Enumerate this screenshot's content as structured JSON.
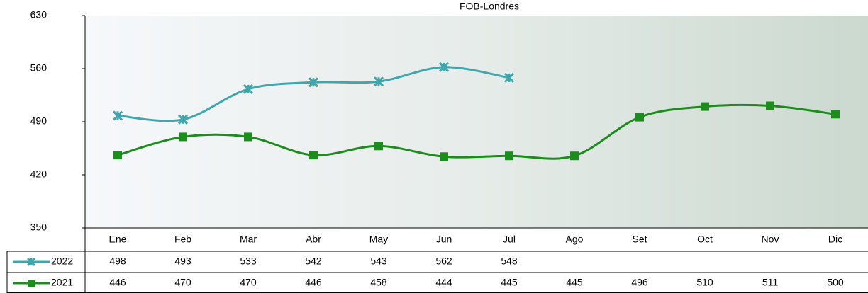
{
  "chart_data": {
    "type": "line",
    "title": "FOB-Londres",
    "categories": [
      "Ene",
      "Feb",
      "Mar",
      "Abr",
      "May",
      "Jun",
      "Jul",
      "Ago",
      "Set",
      "Oct",
      "Nov",
      "Dic"
    ],
    "series": [
      {
        "name": "2022",
        "color": "#3fa7ac",
        "values": [
          498,
          493,
          533,
          542,
          543,
          562,
          548,
          null,
          null,
          null,
          null,
          null
        ]
      },
      {
        "name": "2021",
        "color": "#1c8c1c",
        "values": [
          446,
          470,
          470,
          446,
          458,
          444,
          445,
          445,
          496,
          510,
          511,
          500
        ]
      }
    ],
    "ylim": [
      350,
      630
    ],
    "yticks": [
      350,
      420,
      490,
      560,
      630
    ]
  }
}
